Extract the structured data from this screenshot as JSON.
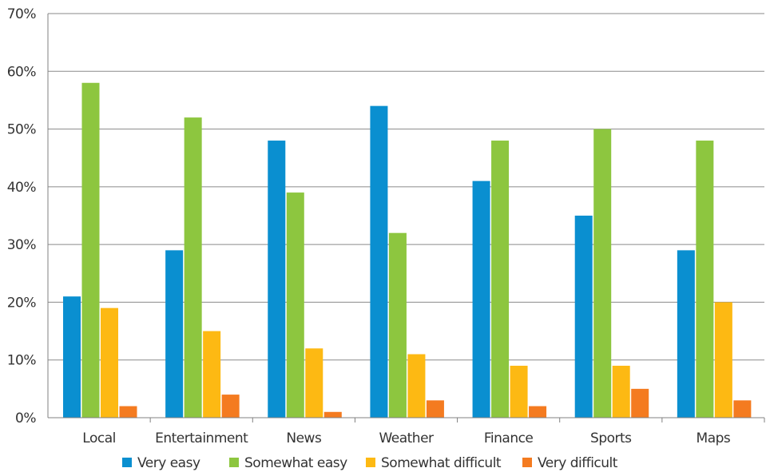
{
  "chart_data": {
    "type": "bar",
    "title": "",
    "xlabel": "",
    "ylabel": "",
    "categories": [
      "Local",
      "Entertainment",
      "News",
      "Weather",
      "Finance",
      "Sports",
      "Maps"
    ],
    "series": [
      {
        "name": "Very easy",
        "color": "#0a8fd0",
        "values": [
          21,
          29,
          48,
          54,
          41,
          35,
          29
        ]
      },
      {
        "name": "Somewhat easy",
        "color": "#8dc63f",
        "values": [
          58,
          52,
          39,
          32,
          48,
          50,
          48
        ]
      },
      {
        "name": "Somewhat difficult",
        "color": "#fdb913",
        "values": [
          19,
          15,
          12,
          11,
          9,
          9,
          20
        ]
      },
      {
        "name": "Very difficult",
        "color": "#f47b20",
        "values": [
          2,
          4,
          1,
          3,
          2,
          5,
          3
        ]
      }
    ],
    "ylim": [
      0,
      70
    ],
    "yticks": [
      "0%",
      "10%",
      "20%",
      "30%",
      "40%",
      "50%",
      "60%",
      "70%"
    ],
    "ytick_values": [
      0,
      10,
      20,
      30,
      40,
      50,
      60,
      70
    ],
    "grid": true,
    "legend_position": "bottom"
  }
}
